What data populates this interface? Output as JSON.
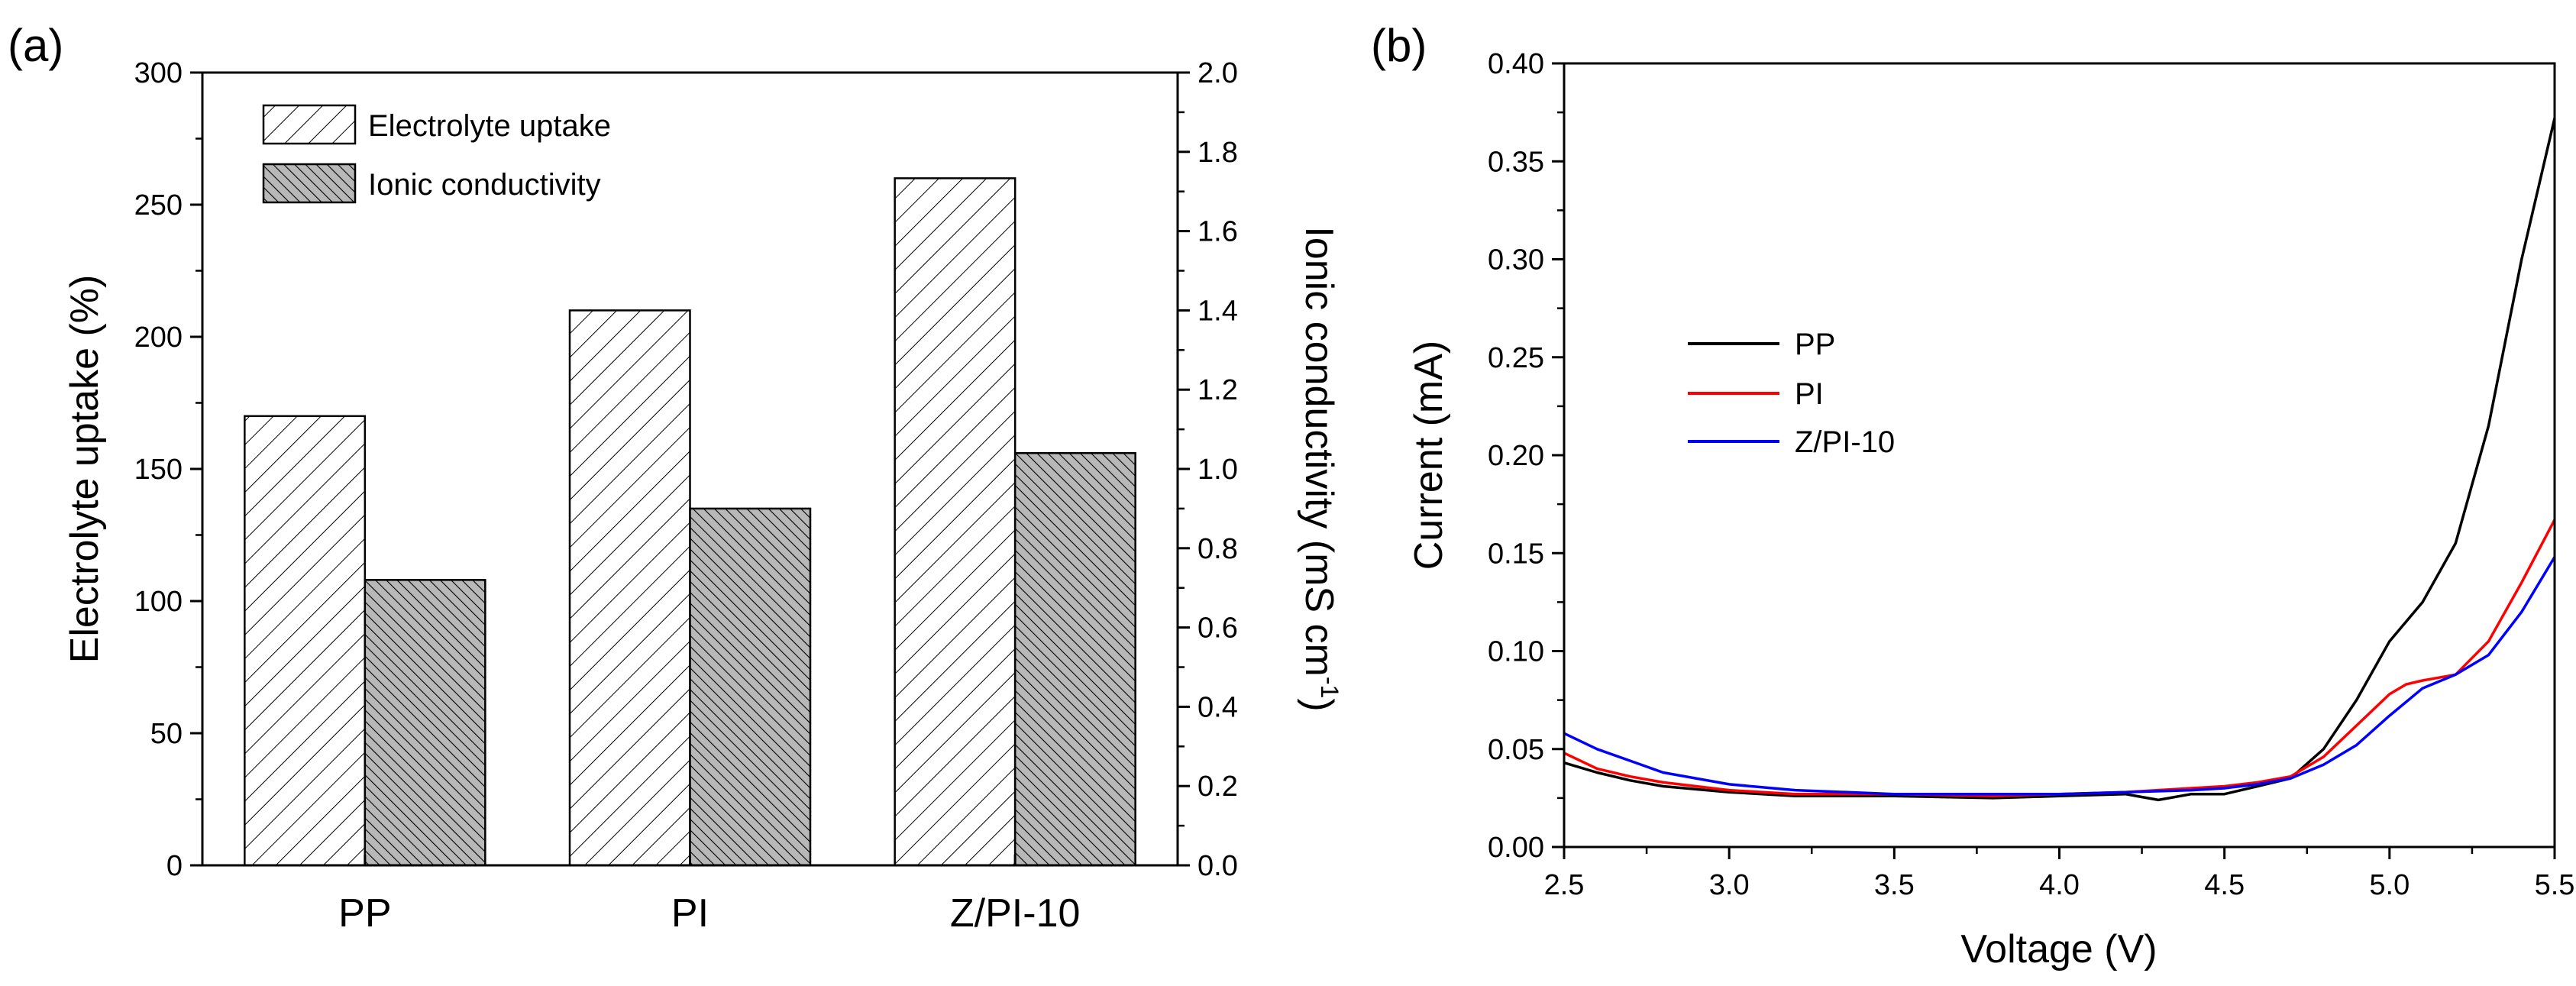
{
  "panels": {
    "a": "(a)",
    "b": "(b)"
  },
  "chart_data": [
    {
      "type": "bar",
      "categories": [
        "PP",
        "PI",
        "Z/PI-10"
      ],
      "series": [
        {
          "name": "Electrolyte uptake",
          "axis": "left",
          "values": [
            170,
            210,
            260
          ]
        },
        {
          "name": "Ionic conductivity",
          "axis": "right",
          "values": [
            0.72,
            0.9,
            1.04
          ]
        }
      ],
      "ylabel": "Electrolyte uptake (%)",
      "ylabel_right_main": "Ionic conductivity (mS cm",
      "ylabel_right_sup": "-1",
      "ylabel_right_end": ")",
      "ylim": [
        0,
        300
      ],
      "ylim_right": [
        0,
        2.0
      ],
      "yticks": [
        "0",
        "50",
        "100",
        "150",
        "200",
        "250",
        "300"
      ],
      "yticks_right": [
        "0.0",
        "0.2",
        "0.4",
        "0.6",
        "0.8",
        "1.0",
        "1.2",
        "1.4",
        "1.6",
        "1.8",
        "2.0"
      ],
      "legend_position": "top-left",
      "colors": {
        "uptake_fill": "#ffffff",
        "conductivity_fill": "#b8b8b8",
        "edge": "#000000"
      }
    },
    {
      "type": "line",
      "xlabel": "Voltage (V)",
      "ylabel": "Current (mA)",
      "xlim": [
        2.5,
        5.5
      ],
      "ylim": [
        0,
        0.4
      ],
      "xticks": [
        "2.5",
        "3.0",
        "3.5",
        "4.0",
        "4.5",
        "5.0",
        "5.5"
      ],
      "yticks": [
        "0.00",
        "0.05",
        "0.10",
        "0.15",
        "0.20",
        "0.25",
        "0.30",
        "0.35",
        "0.40"
      ],
      "legend_position": "center-left",
      "series": [
        {
          "name": "PP",
          "color": "#000000",
          "x": [
            2.5,
            2.6,
            2.7,
            2.8,
            3.0,
            3.2,
            3.5,
            3.8,
            4.0,
            4.2,
            4.3,
            4.4,
            4.5,
            4.6,
            4.7,
            4.8,
            4.9,
            5.0,
            5.1,
            5.2,
            5.3,
            5.4,
            5.5
          ],
          "y": [
            0.043,
            0.038,
            0.034,
            0.031,
            0.028,
            0.026,
            0.026,
            0.025,
            0.026,
            0.027,
            0.024,
            0.027,
            0.027,
            0.031,
            0.035,
            0.05,
            0.075,
            0.105,
            0.125,
            0.155,
            0.215,
            0.3,
            0.372
          ]
        },
        {
          "name": "PI",
          "color": "#ff0000",
          "x": [
            2.5,
            2.6,
            2.7,
            2.8,
            3.0,
            3.2,
            3.5,
            3.8,
            4.0,
            4.2,
            4.4,
            4.5,
            4.6,
            4.7,
            4.8,
            4.9,
            5.0,
            5.05,
            5.1,
            5.2,
            5.3,
            5.4,
            5.5
          ],
          "y": [
            0.048,
            0.04,
            0.036,
            0.033,
            0.029,
            0.027,
            0.027,
            0.026,
            0.027,
            0.028,
            0.03,
            0.031,
            0.033,
            0.036,
            0.046,
            0.062,
            0.078,
            0.083,
            0.085,
            0.088,
            0.105,
            0.135,
            0.167
          ]
        },
        {
          "name": "Z/PI-10",
          "color": "#0000ff",
          "x": [
            2.5,
            2.6,
            2.7,
            2.8,
            3.0,
            3.2,
            3.5,
            3.8,
            4.0,
            4.2,
            4.4,
            4.5,
            4.6,
            4.7,
            4.8,
            4.9,
            5.0,
            5.1,
            5.2,
            5.3,
            5.4,
            5.5
          ],
          "y": [
            0.058,
            0.05,
            0.044,
            0.038,
            0.032,
            0.029,
            0.027,
            0.027,
            0.027,
            0.028,
            0.029,
            0.03,
            0.032,
            0.035,
            0.042,
            0.052,
            0.067,
            0.081,
            0.088,
            0.098,
            0.12,
            0.148
          ]
        }
      ]
    }
  ]
}
